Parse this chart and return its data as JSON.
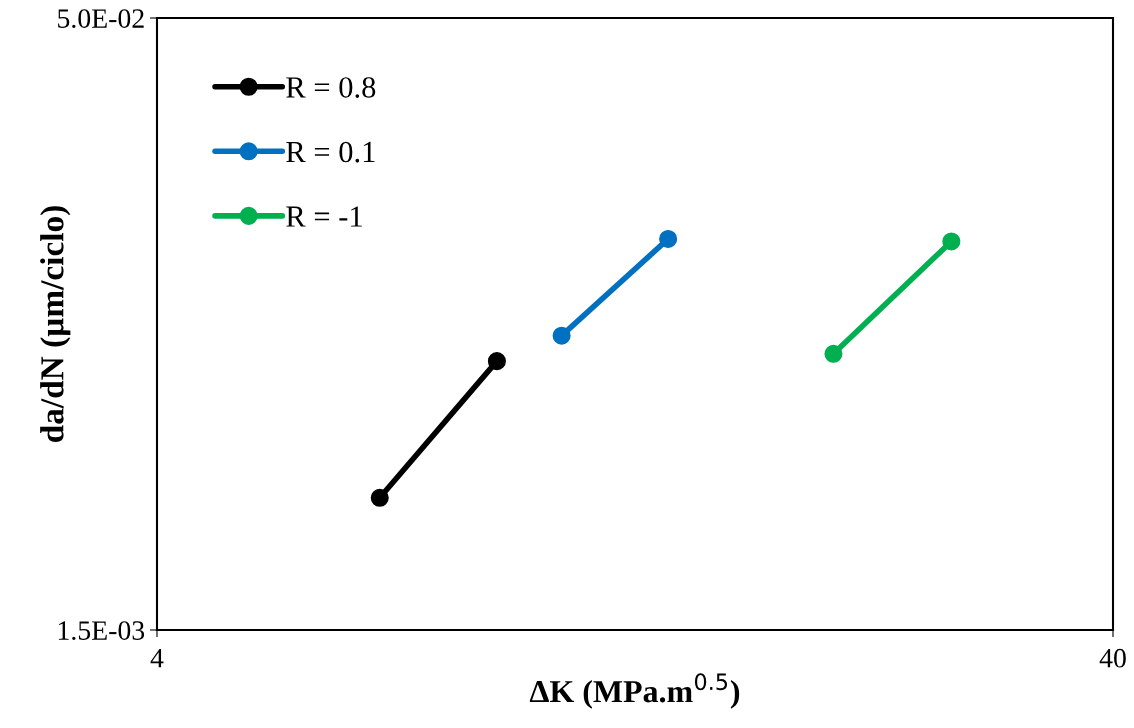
{
  "chart_data": {
    "type": "line",
    "xlabel": "ΔK (MPa.m$^{0.5}$)",
    "ylabel": "da/dN (µm/ciclo)",
    "log": "xy",
    "xlim": [
      4,
      40
    ],
    "ylim": [
      0.0015,
      0.05
    ],
    "xticks": [
      4,
      40
    ],
    "yticks": [
      {
        "value": 0.0015,
        "label": "1.5E-03"
      },
      {
        "value": 0.05,
        "label": "5.0E-02"
      }
    ],
    "legend": "top left",
    "marker": "circle",
    "line_style": "solid",
    "series": [
      {
        "name": "R = 0.8",
        "color": "#000000",
        "x": [
          6.84,
          9.07
        ],
        "values": [
          0.0032,
          0.007
        ]
      },
      {
        "name": "R = 0.1",
        "color": "#0070c0",
        "x": [
          10.6,
          13.7
        ],
        "values": [
          0.0081,
          0.0141
        ]
      },
      {
        "name": "R = -1",
        "color": "#00b050",
        "x": [
          20.4,
          27.1
        ],
        "values": [
          0.0073,
          0.0139
        ]
      }
    ]
  }
}
